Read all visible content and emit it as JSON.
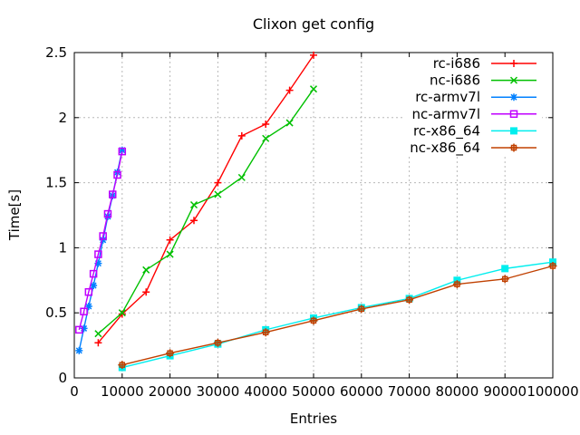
{
  "title": "Clixon get config",
  "chart_data": {
    "type": "line",
    "title": "Clixon get config",
    "xlabel": "Entries",
    "ylabel": "Time[s]",
    "xlim": [
      0,
      100000
    ],
    "ylim": [
      0,
      2.5
    ],
    "x_ticks": [
      0,
      10000,
      20000,
      30000,
      40000,
      50000,
      60000,
      70000,
      80000,
      90000,
      100000
    ],
    "x_tick_labels": [
      "0",
      "10000",
      "20000",
      "30000",
      "40000",
      "50000",
      "60000",
      "70000",
      "80000",
      "90000",
      "100000"
    ],
    "y_ticks": [
      0,
      0.5,
      1,
      1.5,
      2,
      2.5
    ],
    "y_tick_labels": [
      "0",
      "0.5",
      "1",
      "1.5",
      "2",
      "2.5"
    ],
    "grid": true,
    "grid_color": "#b8b8b8",
    "legend_position": "top-right-inside",
    "series": [
      {
        "name": "rc-i686",
        "color": "#ff0000",
        "marker": "plus",
        "points": [
          [
            5000,
            0.27
          ],
          [
            10000,
            0.49
          ],
          [
            15000,
            0.66
          ],
          [
            20000,
            1.06
          ],
          [
            25000,
            1.21
          ],
          [
            30000,
            1.5
          ],
          [
            35000,
            1.86
          ],
          [
            40000,
            1.95
          ],
          [
            45000,
            2.21
          ],
          [
            50000,
            2.48
          ]
        ]
      },
      {
        "name": "nc-i686",
        "color": "#00c000",
        "marker": "cross",
        "points": [
          [
            5000,
            0.34
          ],
          [
            10000,
            0.5
          ],
          [
            15000,
            0.83
          ],
          [
            20000,
            0.95
          ],
          [
            25000,
            1.33
          ],
          [
            30000,
            1.41
          ],
          [
            35000,
            1.54
          ],
          [
            40000,
            1.84
          ],
          [
            45000,
            1.96
          ],
          [
            50000,
            2.22
          ]
        ]
      },
      {
        "name": "rc-armv7l",
        "color": "#0080ff",
        "marker": "asterisk",
        "points": [
          [
            1000,
            0.21
          ],
          [
            2000,
            0.38
          ],
          [
            3000,
            0.55
          ],
          [
            4000,
            0.71
          ],
          [
            5000,
            0.88
          ],
          [
            6000,
            1.06
          ],
          [
            7000,
            1.24
          ],
          [
            8000,
            1.4
          ],
          [
            9000,
            1.58
          ],
          [
            10000,
            1.75
          ]
        ]
      },
      {
        "name": "nc-armv7l",
        "color": "#c000ff",
        "marker": "open-square",
        "points": [
          [
            1000,
            0.37
          ],
          [
            2000,
            0.51
          ],
          [
            3000,
            0.66
          ],
          [
            4000,
            0.8
          ],
          [
            5000,
            0.95
          ],
          [
            6000,
            1.09
          ],
          [
            7000,
            1.26
          ],
          [
            8000,
            1.41
          ],
          [
            9000,
            1.56
          ],
          [
            10000,
            1.74
          ]
        ]
      },
      {
        "name": "rc-x86_64",
        "color": "#00eeee",
        "marker": "filled-square",
        "points": [
          [
            10000,
            0.08
          ],
          [
            20000,
            0.17
          ],
          [
            30000,
            0.26
          ],
          [
            40000,
            0.37
          ],
          [
            50000,
            0.46
          ],
          [
            60000,
            0.54
          ],
          [
            70000,
            0.61
          ],
          [
            80000,
            0.75
          ],
          [
            90000,
            0.84
          ],
          [
            100000,
            0.89
          ]
        ]
      },
      {
        "name": "nc-x86_64",
        "color": "#c04000",
        "marker": "square-plus",
        "points": [
          [
            10000,
            0.1
          ],
          [
            20000,
            0.19
          ],
          [
            30000,
            0.27
          ],
          [
            40000,
            0.35
          ],
          [
            50000,
            0.44
          ],
          [
            60000,
            0.53
          ],
          [
            70000,
            0.6
          ],
          [
            80000,
            0.72
          ],
          [
            90000,
            0.76
          ],
          [
            100000,
            0.86
          ]
        ]
      }
    ]
  }
}
